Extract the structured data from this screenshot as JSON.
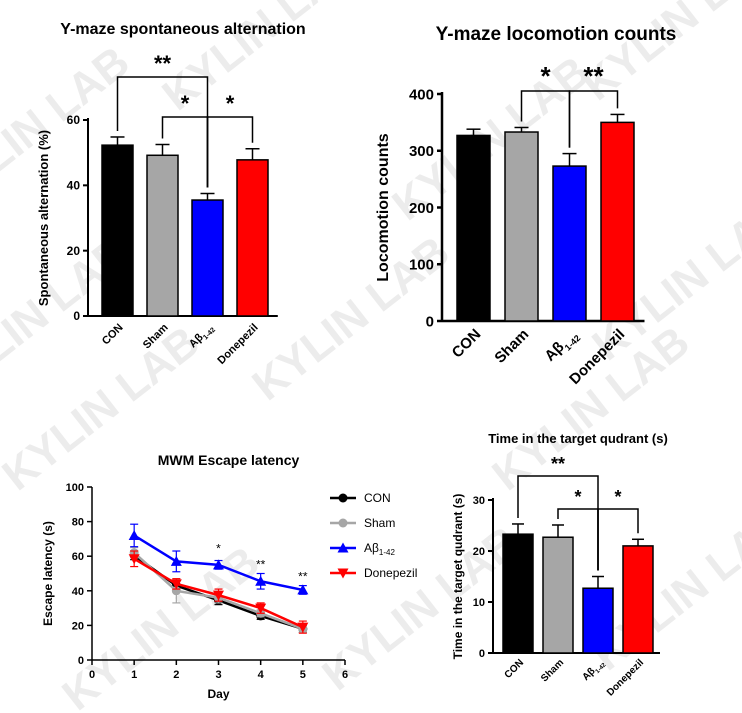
{
  "watermark": {
    "text": "KYLIN LAB"
  },
  "chart_data": [
    {
      "id": "ymaze_alternation",
      "type": "bar",
      "title": "Y-maze  spontaneous alternation",
      "xlabel": "",
      "ylabel": "Spontaneous alternation (%)",
      "ylim": [
        0,
        60
      ],
      "yticks": [
        "0",
        "20",
        "40",
        "60"
      ],
      "categories": [
        {
          "main": "CON",
          "sub": ""
        },
        {
          "main": "Sham",
          "sub": ""
        },
        {
          "main": "Aβ",
          "sub": "1-42"
        },
        {
          "main": "Donepezil",
          "sub": ""
        }
      ],
      "values": [
        52.3,
        49.2,
        35.5,
        47.8
      ],
      "errors": [
        2.5,
        3.3,
        2.0,
        3.4
      ],
      "colors": [
        "#000000",
        "#a6a6a6",
        "#0000ff",
        "#ff0000"
      ],
      "significance": [
        {
          "from": 0,
          "to": 2,
          "label": "**"
        },
        {
          "from": 1,
          "to": 2,
          "label": "*"
        },
        {
          "from": 2,
          "to": 3,
          "label": "*"
        }
      ]
    },
    {
      "id": "ymaze_locomotion",
      "type": "bar",
      "title": "Y-maze locomotion counts",
      "xlabel": "",
      "ylabel": "Locomotion counts",
      "ylim": [
        0,
        400
      ],
      "yticks": [
        "0",
        "100",
        "200",
        "300",
        "400"
      ],
      "categories": [
        {
          "main": "CON",
          "sub": ""
        },
        {
          "main": "Sham",
          "sub": ""
        },
        {
          "main": "Aβ",
          "sub": "1-42"
        },
        {
          "main": "Donepezil",
          "sub": ""
        }
      ],
      "values": [
        327,
        333,
        273,
        350
      ],
      "errors": [
        11,
        8,
        22,
        14
      ],
      "colors": [
        "#000000",
        "#a6a6a6",
        "#0000ff",
        "#ff0000"
      ],
      "significance": [
        {
          "from": 1,
          "to": 2,
          "label": "*"
        },
        {
          "from": 2,
          "to": 3,
          "label": "**"
        }
      ]
    },
    {
      "id": "mwm_escape",
      "type": "line",
      "title": "MWM Escape latency",
      "xlabel": "Day",
      "ylabel": "Escape latency (s)",
      "xlim": [
        0,
        6
      ],
      "ylim": [
        0,
        100
      ],
      "xticks": [
        "0",
        "1",
        "2",
        "3",
        "4",
        "5",
        "6"
      ],
      "yticks": [
        "0",
        "20",
        "40",
        "60",
        "80",
        "100"
      ],
      "x": [
        1,
        2,
        3,
        4,
        5
      ],
      "series": [
        {
          "name": "CON",
          "sub": "",
          "color": "#000000",
          "marker": "circle",
          "values": [
            60.5,
            43,
            34.5,
            25.5,
            18
          ],
          "errors": [
            2.5,
            3,
            2.5,
            2,
            2
          ]
        },
        {
          "name": "Sham",
          "sub": "",
          "color": "#a6a6a6",
          "marker": "circle",
          "values": [
            62,
            40,
            36,
            27,
            18
          ],
          "errors": [
            3,
            7,
            3,
            2,
            2
          ]
        },
        {
          "name": "Aβ",
          "sub": "1-42",
          "color": "#0000ff",
          "marker": "triangle",
          "values": [
            72,
            57,
            55,
            45.5,
            40.5
          ],
          "errors": [
            6.5,
            6,
            2.5,
            4.5,
            2.5
          ]
        },
        {
          "name": "Donepezil",
          "sub": "",
          "color": "#ff0000",
          "marker": "down-triangle",
          "values": [
            58.5,
            44,
            37.5,
            30,
            19
          ],
          "errors": [
            4.5,
            3,
            3.5,
            3,
            3.5
          ]
        }
      ],
      "annotations": [
        {
          "x": 3,
          "label": "*",
          "y": 62
        },
        {
          "x": 4,
          "label": "**",
          "y": 53
        },
        {
          "x": 5,
          "label": "**",
          "y": 46
        }
      ],
      "legend": "right"
    },
    {
      "id": "mwm_target",
      "type": "bar",
      "title": "Time in the target qudrant (s)",
      "xlabel": "",
      "ylabel": "Time in the target qudrant (s)",
      "ylim": [
        0,
        30
      ],
      "yticks": [
        "0",
        "10",
        "20",
        "30"
      ],
      "categories": [
        {
          "main": "CON",
          "sub": ""
        },
        {
          "main": "Sham",
          "sub": ""
        },
        {
          "main": "Aβ",
          "sub": "1-42"
        },
        {
          "main": "Donepezil",
          "sub": ""
        }
      ],
      "values": [
        23.3,
        22.7,
        12.7,
        21
      ],
      "errors": [
        2,
        2.4,
        2.3,
        1.3
      ],
      "colors": [
        "#000000",
        "#a6a6a6",
        "#0000ff",
        "#ff0000"
      ],
      "significance": [
        {
          "from": 0,
          "to": 2,
          "label": "**"
        },
        {
          "from": 1,
          "to": 2,
          "label": "*"
        },
        {
          "from": 2,
          "to": 3,
          "label": "*"
        }
      ]
    }
  ]
}
